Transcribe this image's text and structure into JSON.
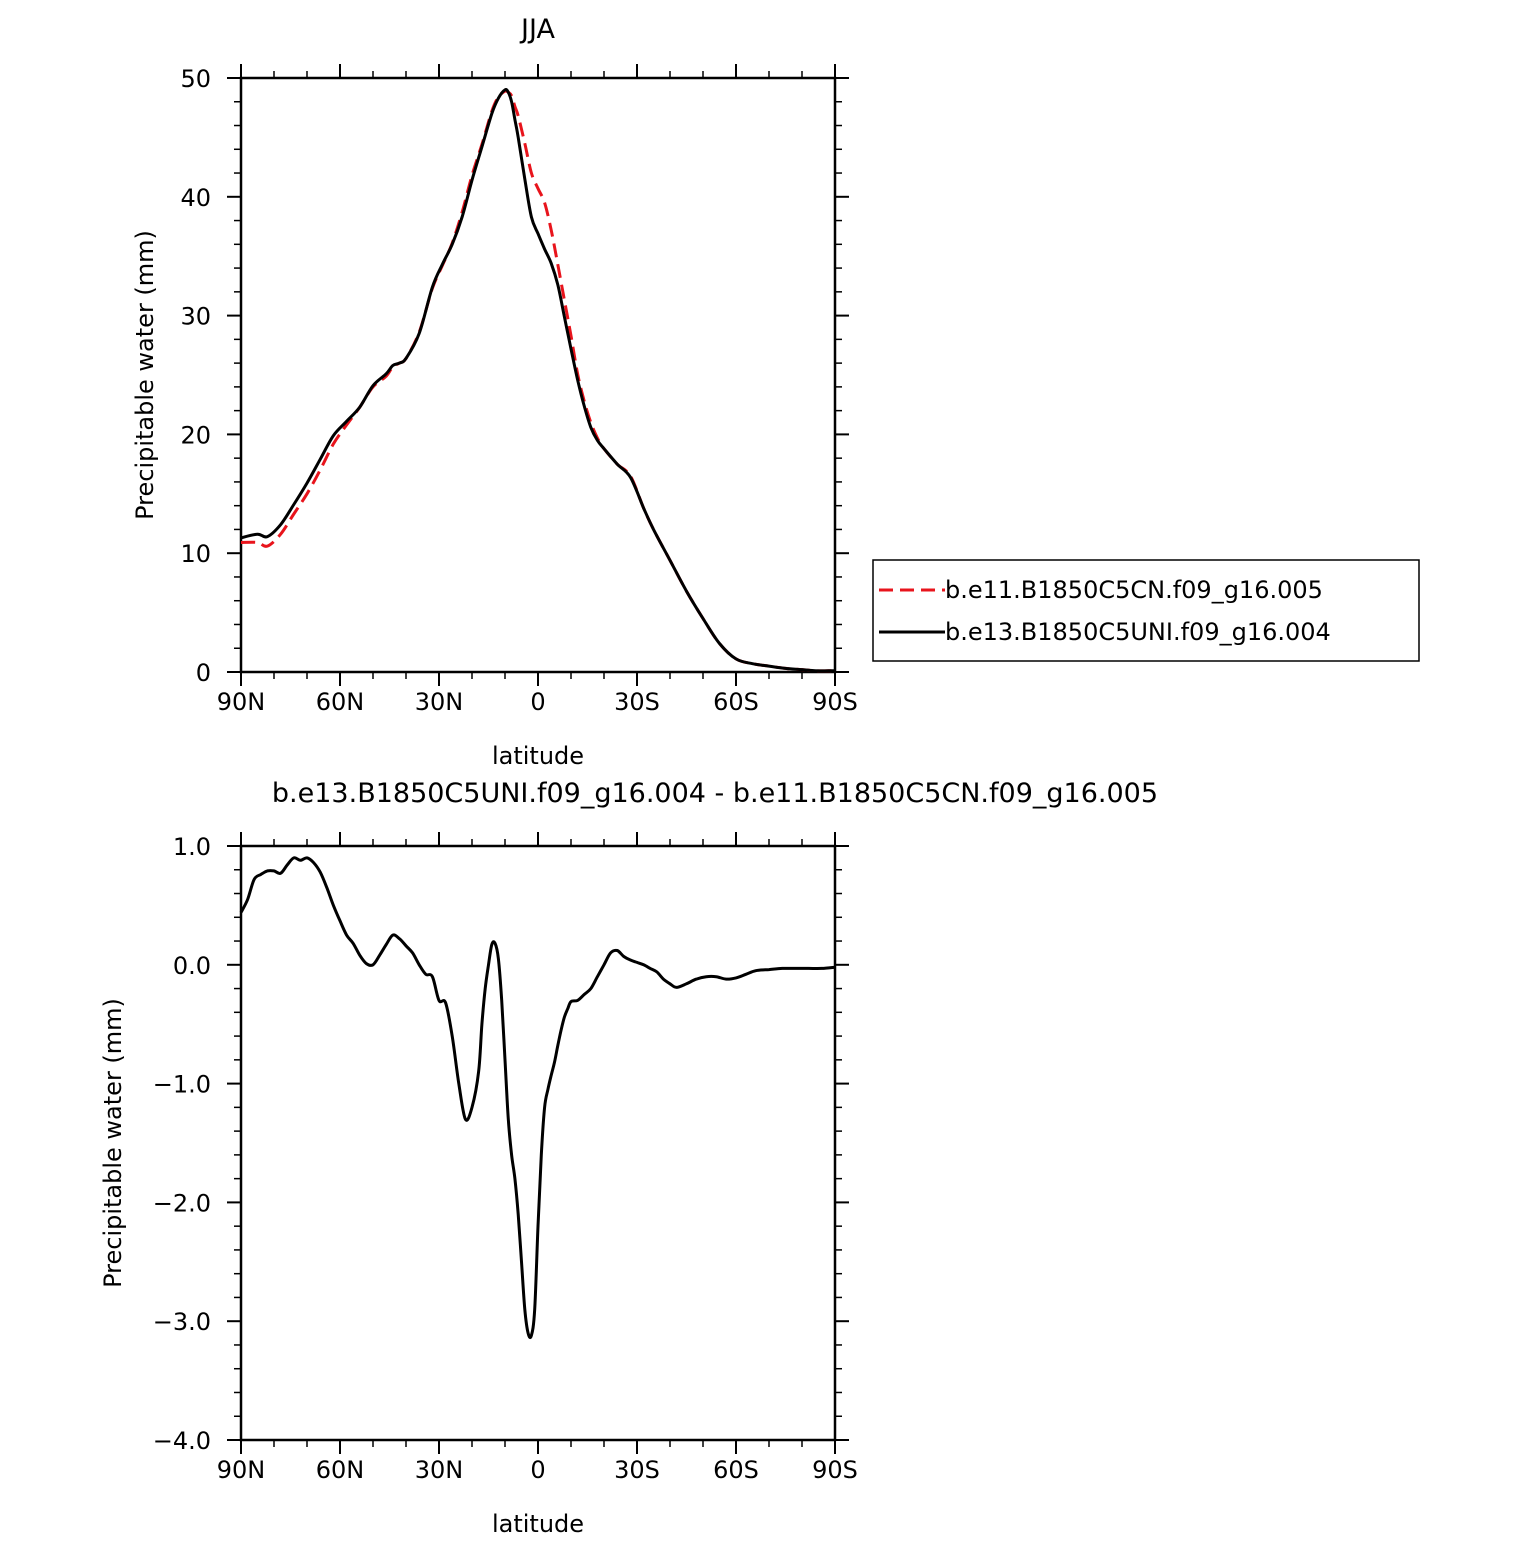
{
  "chart_data": [
    {
      "type": "line",
      "title": "JJA",
      "xlabel": "latitude",
      "ylabel": "Precipitable water (mm)",
      "xlim": [
        90,
        -90
      ],
      "ylim": [
        0,
        50
      ],
      "x_ticks": [
        90,
        60,
        30,
        0,
        -30,
        -60,
        -90
      ],
      "x_tick_labels": [
        "90N",
        "60N",
        "30N",
        "0",
        "30S",
        "60S",
        "90S"
      ],
      "y_ticks": [
        0,
        10,
        20,
        30,
        40,
        50
      ],
      "y_tick_labels": [
        "0",
        "10",
        "20",
        "30",
        "40",
        "50"
      ],
      "grid": false,
      "legend_position": "right",
      "series": [
        {
          "name": "b.e11.B1850C5CN.f09_g16.005",
          "color": "#e8141c",
          "dash": "dashed",
          "x": [
            90,
            85,
            82,
            78,
            74,
            70,
            66,
            62,
            58,
            54,
            50,
            46,
            44,
            42,
            40,
            36,
            32,
            29,
            26,
            23,
            20,
            17,
            14,
            12,
            10,
            9,
            8,
            7,
            6,
            4,
            2,
            0,
            -2,
            -4,
            -6,
            -8,
            -10,
            -12,
            -14,
            -16,
            -18,
            -20,
            -24,
            -28,
            -32,
            -35,
            -40,
            -45,
            -50,
            -55,
            -60,
            -65,
            -70,
            -75,
            -80,
            -84,
            -88,
            -90
          ],
          "values": [
            10.9,
            10.9,
            10.6,
            11.6,
            13.3,
            15.0,
            17.0,
            19.2,
            20.8,
            22.3,
            24.0,
            24.9,
            25.7,
            26.0,
            26.4,
            28.6,
            32.3,
            34.2,
            36.1,
            38.7,
            41.8,
            44.4,
            47.2,
            48.4,
            48.9,
            48.8,
            48.5,
            47.6,
            46.8,
            44.5,
            42.0,
            40.7,
            39.5,
            37.2,
            34.3,
            31.3,
            28.3,
            25.1,
            22.8,
            21.0,
            19.7,
            18.8,
            17.5,
            16.5,
            13.8,
            12.0,
            9.4,
            6.8,
            4.5,
            2.4,
            1.1,
            0.7,
            0.5,
            0.3,
            0.2,
            0.1,
            0.1,
            0.1
          ]
        },
        {
          "name": "b.e13.B1850C5UNI.f09_g16.004",
          "color": "#000000",
          "dash": "solid",
          "x": [
            90,
            85,
            82,
            78,
            74,
            70,
            66,
            62,
            58,
            54,
            50,
            46,
            44,
            42,
            40,
            36,
            32,
            29,
            26,
            23,
            20,
            17,
            14,
            12,
            10,
            9,
            8,
            7,
            6,
            4,
            2,
            0,
            -2,
            -4,
            -6,
            -8,
            -10,
            -12,
            -14,
            -16,
            -18,
            -20,
            -24,
            -28,
            -32,
            -35,
            -40,
            -45,
            -50,
            -55,
            -60,
            -65,
            -70,
            -75,
            -80,
            -84,
            -88,
            -90
          ],
          "values": [
            11.3,
            11.6,
            11.4,
            12.4,
            14.1,
            15.9,
            17.9,
            19.9,
            21.1,
            22.3,
            24.1,
            25.1,
            25.8,
            26.0,
            26.4,
            28.5,
            32.4,
            34.3,
            36.0,
            38.3,
            41.4,
            44.2,
            47.0,
            48.3,
            49.0,
            48.8,
            48.0,
            46.5,
            45.0,
            41.5,
            38.3,
            36.9,
            35.6,
            34.4,
            32.6,
            29.9,
            27.2,
            24.6,
            22.4,
            20.6,
            19.5,
            18.8,
            17.5,
            16.4,
            13.8,
            12.0,
            9.4,
            6.8,
            4.5,
            2.4,
            1.1,
            0.7,
            0.5,
            0.3,
            0.2,
            0.1,
            0.1,
            0.1
          ]
        }
      ]
    },
    {
      "type": "line",
      "title": "b.e13.B1850C5UNI.f09_g16.004 - b.e11.B1850C5CN.f09_g16.005",
      "xlabel": "latitude",
      "ylabel": "Precipitable water (mm)",
      "xlim": [
        90,
        -90
      ],
      "ylim": [
        -4.0,
        1.0
      ],
      "x_ticks": [
        90,
        60,
        30,
        0,
        -30,
        -60,
        -90
      ],
      "x_tick_labels": [
        "90N",
        "60N",
        "30N",
        "0",
        "30S",
        "60S",
        "90S"
      ],
      "y_ticks": [
        1.0,
        0.0,
        -1.0,
        -2.0,
        -3.0,
        -4.0
      ],
      "y_tick_labels": [
        "1.0",
        "0.0",
        "−1.0",
        "−2.0",
        "−3.0",
        "−4.0"
      ],
      "grid": false,
      "series": [
        {
          "color": "#000000",
          "dash": "solid",
          "x": [
            90,
            88,
            86,
            84,
            82,
            80,
            78,
            76,
            74,
            72,
            70,
            68,
            66,
            64,
            62,
            60,
            58,
            56,
            54,
            52,
            50,
            48,
            46,
            44,
            42,
            40,
            38,
            36,
            34,
            32,
            30,
            28,
            26,
            24,
            22,
            20,
            18,
            17,
            16,
            15,
            14,
            13,
            12,
            11,
            10,
            9,
            8,
            7,
            6,
            5,
            4,
            3,
            2,
            1,
            0,
            -1,
            -2,
            -3,
            -4,
            -5,
            -6,
            -7,
            -8,
            -9,
            -10,
            -12,
            -14,
            -16,
            -18,
            -20,
            -22,
            -24,
            -26,
            -28,
            -30,
            -32,
            -34,
            -36,
            -38,
            -40,
            -42,
            -45,
            -48,
            -51,
            -54,
            -57,
            -60,
            -63,
            -66,
            -70,
            -74,
            -78,
            -82,
            -86,
            -90
          ],
          "values": [
            0.44,
            0.55,
            0.72,
            0.76,
            0.79,
            0.79,
            0.77,
            0.84,
            0.9,
            0.88,
            0.9,
            0.86,
            0.78,
            0.65,
            0.5,
            0.37,
            0.25,
            0.18,
            0.08,
            0.01,
            0.0,
            0.08,
            0.17,
            0.25,
            0.22,
            0.16,
            0.1,
            0.0,
            -0.08,
            -0.1,
            -0.3,
            -0.32,
            -0.6,
            -1.0,
            -1.3,
            -1.2,
            -0.9,
            -0.5,
            -0.2,
            0.0,
            0.17,
            0.18,
            0.05,
            -0.3,
            -0.8,
            -1.3,
            -1.6,
            -1.8,
            -2.1,
            -2.5,
            -2.9,
            -3.1,
            -3.12,
            -2.9,
            -2.2,
            -1.6,
            -1.2,
            -1.05,
            -0.93,
            -0.82,
            -0.68,
            -0.55,
            -0.44,
            -0.37,
            -0.31,
            -0.3,
            -0.25,
            -0.2,
            -0.1,
            0.0,
            0.1,
            0.12,
            0.07,
            0.04,
            0.02,
            0.0,
            -0.03,
            -0.06,
            -0.12,
            -0.16,
            -0.19,
            -0.16,
            -0.12,
            -0.1,
            -0.1,
            -0.12,
            -0.11,
            -0.08,
            -0.05,
            -0.04,
            -0.03,
            -0.03,
            -0.03,
            -0.03,
            -0.02
          ]
        }
      ]
    }
  ]
}
